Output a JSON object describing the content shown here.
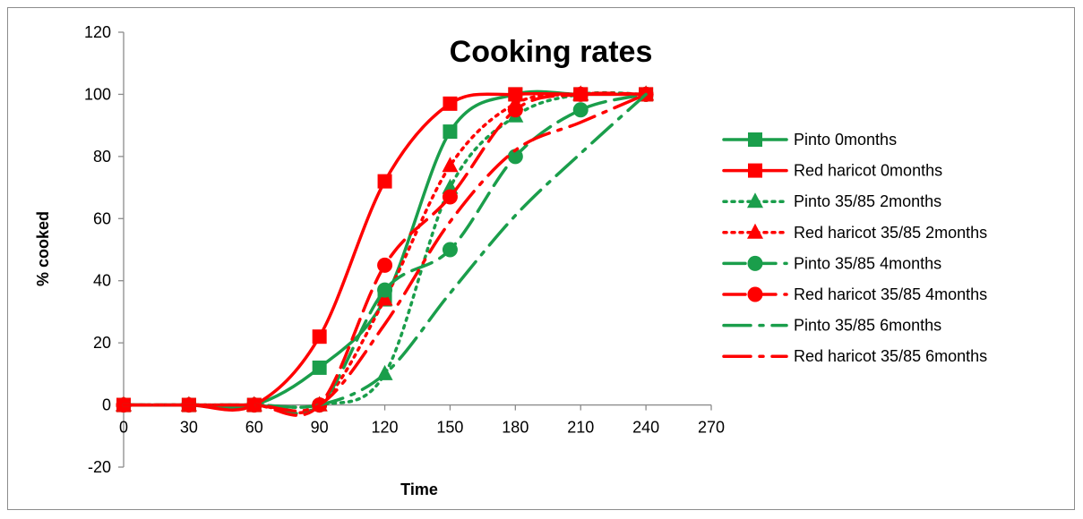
{
  "chart_data": {
    "type": "line",
    "title": "Cooking rates",
    "xlabel": "Time",
    "ylabel": "% cooked",
    "xlim": [
      0,
      270
    ],
    "ylim": [
      -20,
      120
    ],
    "xticks": [
      0,
      30,
      60,
      90,
      120,
      150,
      180,
      210,
      240,
      270
    ],
    "yticks": [
      -20,
      0,
      20,
      40,
      60,
      80,
      100,
      120
    ],
    "grid": false,
    "legend_position": "right",
    "x": [
      0,
      30,
      60,
      90,
      120,
      150,
      180,
      210,
      240
    ],
    "series": [
      {
        "name": "Pinto 0months",
        "color": "#1a9e4b",
        "dash": "solid",
        "marker": "square",
        "values": [
          0,
          0,
          0,
          12,
          34,
          88,
          100,
          100,
          100
        ]
      },
      {
        "name": "Red haricot 0months",
        "color": "#ff0000",
        "dash": "solid",
        "marker": "square",
        "values": [
          0,
          0,
          0,
          22,
          72,
          97,
          100,
          100,
          100
        ]
      },
      {
        "name": "Pinto 35/85 2months",
        "color": "#1a9e4b",
        "dash": "dot",
        "marker": "triangle",
        "values": [
          0,
          0,
          0,
          0,
          10,
          70,
          93,
          100,
          100
        ]
      },
      {
        "name": "Red haricot 35/85 2months",
        "color": "#ff0000",
        "dash": "dot",
        "marker": "triangle",
        "values": [
          0,
          0,
          0,
          0,
          34,
          77,
          97,
          100,
          100
        ]
      },
      {
        "name": "Pinto 35/85 4months",
        "color": "#1a9e4b",
        "dash": "dash",
        "marker": "circle",
        "values": [
          0,
          0,
          0,
          0,
          37,
          50,
          80,
          95,
          100
        ]
      },
      {
        "name": "Red haricot 35/85 4months",
        "color": "#ff0000",
        "dash": "dash",
        "marker": "circle",
        "values": [
          0,
          0,
          0,
          0,
          45,
          67,
          95,
          100,
          100
        ]
      },
      {
        "name": "Pinto 35/85 6months",
        "color": "#1a9e4b",
        "dash": "longdashdot",
        "marker": "none",
        "values": [
          0,
          0,
          0,
          0,
          10,
          36,
          61,
          81,
          100
        ]
      },
      {
        "name": "Red haricot 35/85 6months",
        "color": "#ff0000",
        "dash": "longdashdot",
        "marker": "none",
        "values": [
          0,
          0,
          0,
          0,
          26,
          59,
          82,
          91,
          100
        ]
      }
    ]
  }
}
